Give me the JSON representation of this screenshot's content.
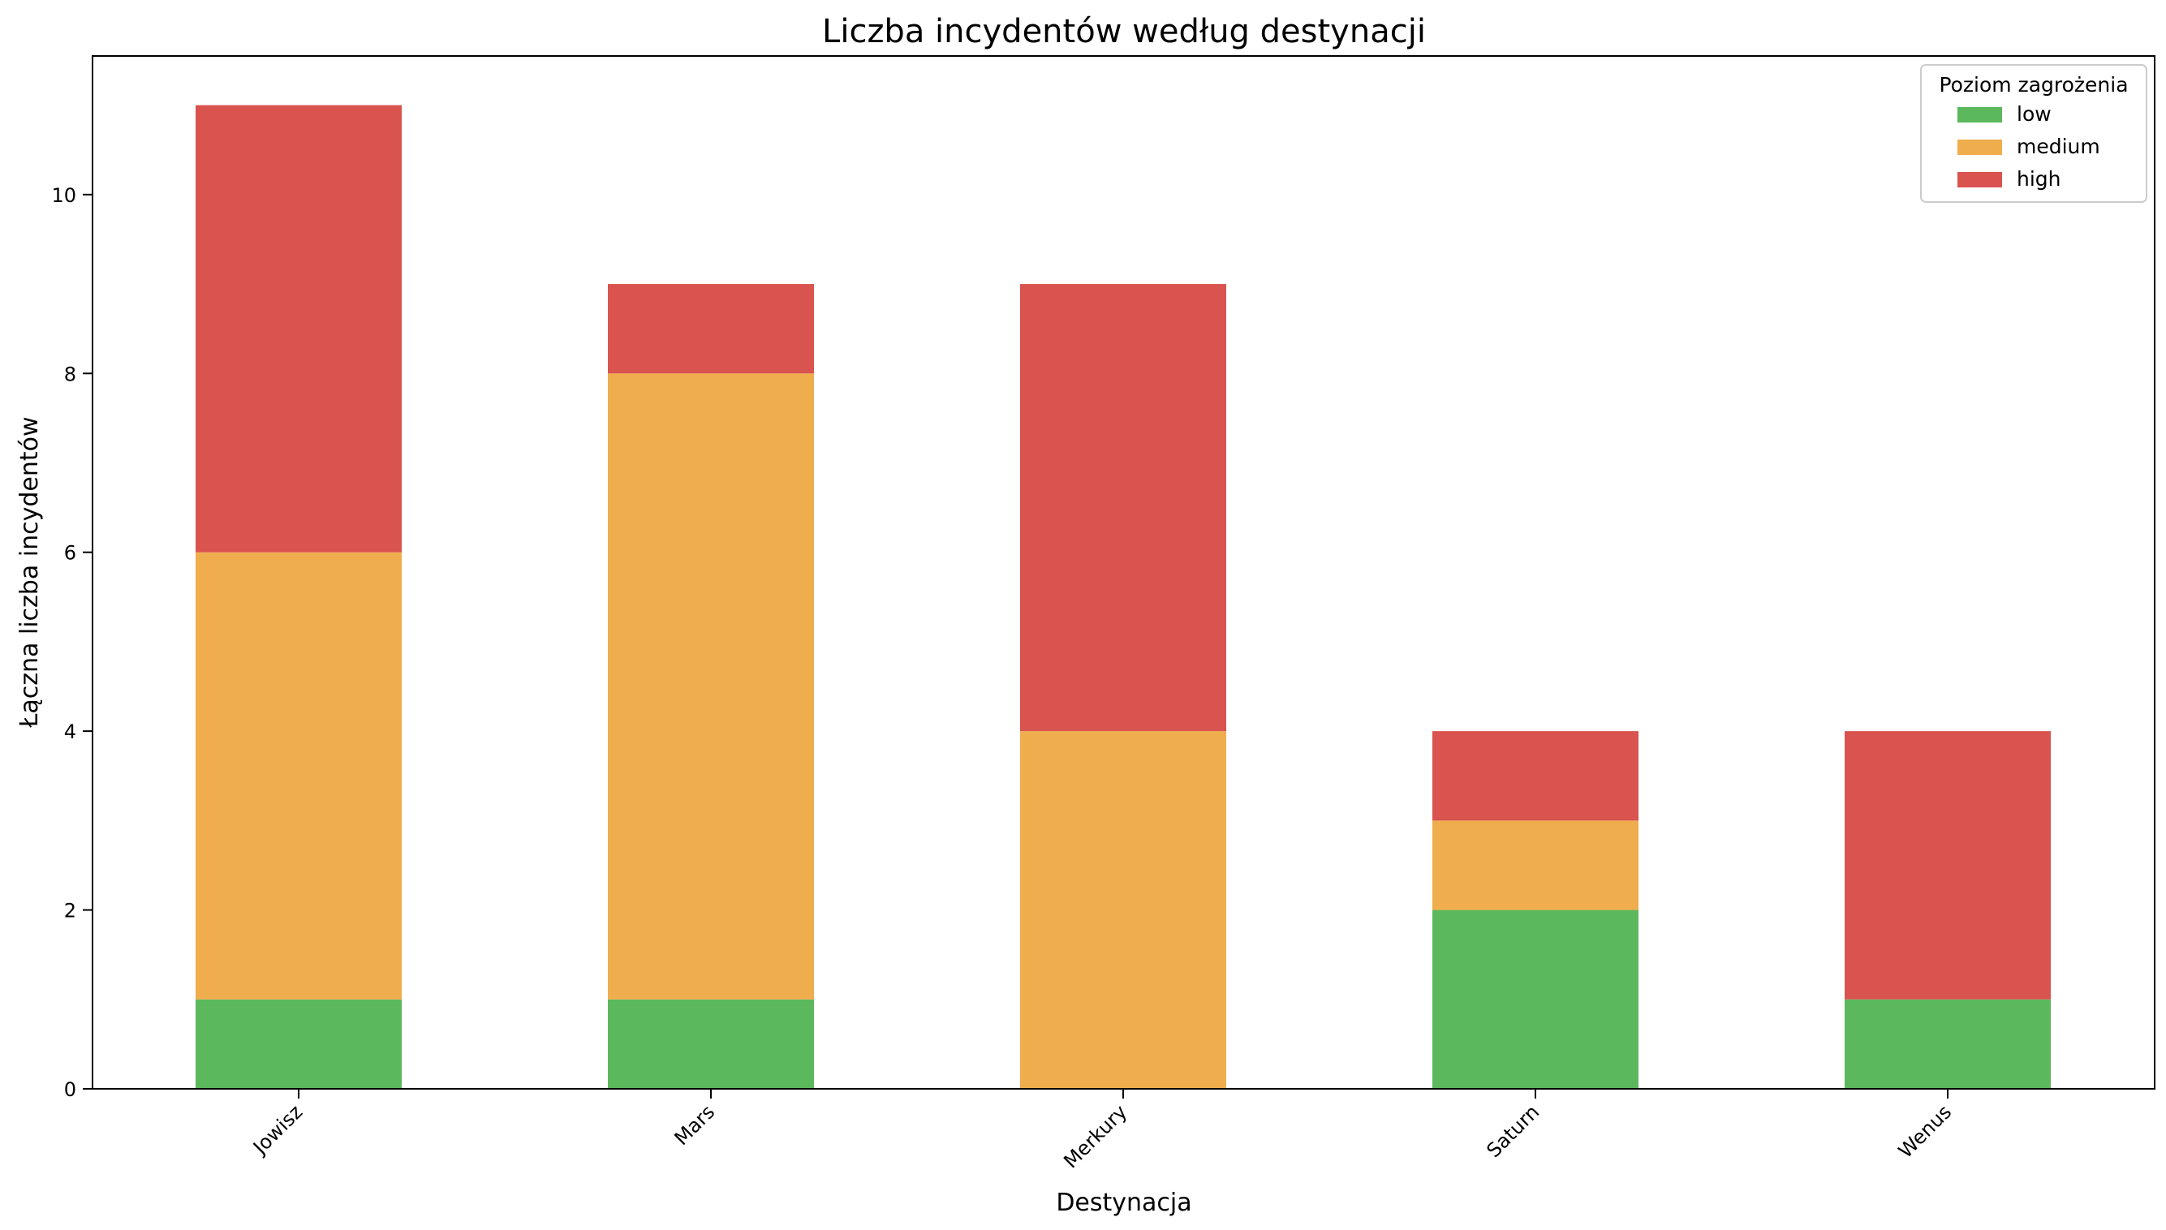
{
  "chart_data": {
    "type": "bar",
    "stacked": true,
    "title": "Liczba incydentów według destynacji",
    "xlabel": "Destynacja",
    "ylabel": "Łączna liczba incydentów",
    "categories": [
      "Jowisz",
      "Mars",
      "Merkury",
      "Saturn",
      "Wenus"
    ],
    "series": [
      {
        "name": "low",
        "color": "#5cb85c",
        "values": [
          1,
          1,
          0,
          2,
          1
        ]
      },
      {
        "name": "medium",
        "color": "#f0ad4e",
        "values": [
          5,
          7,
          4,
          1,
          0
        ]
      },
      {
        "name": "high",
        "color": "#d9534f",
        "values": [
          5,
          1,
          5,
          1,
          3
        ]
      }
    ],
    "yticks": [
      0,
      2,
      4,
      6,
      8,
      10
    ],
    "ylim": [
      0,
      11.55
    ],
    "grid": false,
    "legend": {
      "title": "Poziom zagrożenia",
      "position": "top-right"
    }
  }
}
